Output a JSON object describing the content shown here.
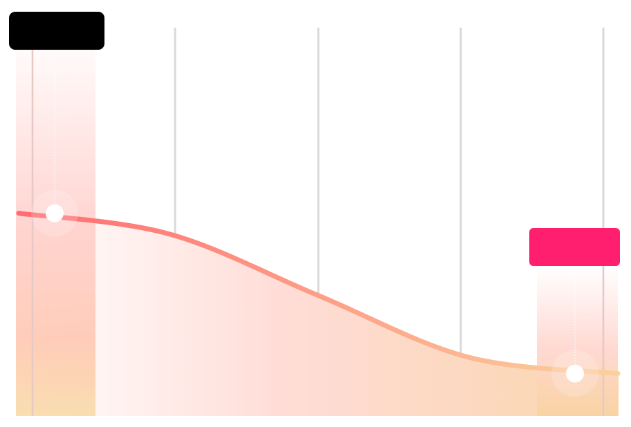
{
  "chart_data": {
    "type": "area",
    "title": "",
    "xlabel": "",
    "ylabel": "",
    "grid": true,
    "x": [
      0,
      1,
      2,
      3,
      4
    ],
    "series": [
      {
        "values": [
          0.52,
          0.47,
          0.32,
          0.17,
          0.13
        ]
      }
    ],
    "ylim": [
      0,
      1
    ],
    "highlights": [
      {
        "index": 0,
        "value": 0.52,
        "label": "",
        "color": "#000000"
      },
      {
        "index": 4,
        "value": 0.13,
        "label": "",
        "color": "#ff1f6e"
      }
    ],
    "colors": {
      "line_start": "#ff6b72",
      "line_end": "#fbd19d",
      "fill_start": "#ffe9ea",
      "fill_end": "#fad7ae",
      "grid": "#d9d9d9"
    }
  }
}
